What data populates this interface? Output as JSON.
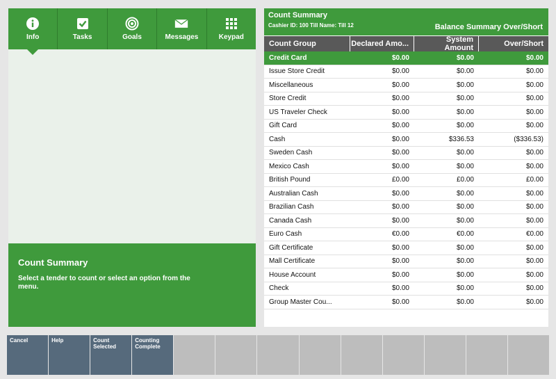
{
  "tabs": [
    {
      "label": "Info",
      "icon": "info-icon"
    },
    {
      "label": "Tasks",
      "icon": "checkbox-icon"
    },
    {
      "label": "Goals",
      "icon": "target-icon"
    },
    {
      "label": "Messages",
      "icon": "envelope-icon"
    },
    {
      "label": "Keypad",
      "icon": "keypad-icon"
    }
  ],
  "info": {
    "title": "Count Summary",
    "text": "Select a tender to count or select an option from the menu."
  },
  "summary": {
    "title": "Count Summary",
    "subtitle": "Cashier ID:  100  Till Name:  Till 12",
    "right_title": "Balance Summary Over/Short"
  },
  "table": {
    "headers": [
      "Count Group",
      "Declared Amo...",
      "System Amount",
      "Over/Short"
    ],
    "rows": [
      [
        "Credit Card",
        "$0.00",
        "$0.00",
        "$0.00"
      ],
      [
        "Issue Store Credit",
        "$0.00",
        "$0.00",
        "$0.00"
      ],
      [
        "Miscellaneous",
        "$0.00",
        "$0.00",
        "$0.00"
      ],
      [
        "Store Credit",
        "$0.00",
        "$0.00",
        "$0.00"
      ],
      [
        "US Traveler Check",
        "$0.00",
        "$0.00",
        "$0.00"
      ],
      [
        "Gift Card",
        "$0.00",
        "$0.00",
        "$0.00"
      ],
      [
        "Cash",
        "$0.00",
        "$336.53",
        "($336.53)"
      ],
      [
        "Sweden Cash",
        "$0.00",
        "$0.00",
        "$0.00"
      ],
      [
        "Mexico Cash",
        "$0.00",
        "$0.00",
        "$0.00"
      ],
      [
        "British Pound",
        "£0.00",
        "£0.00",
        "£0.00"
      ],
      [
        "Australian Cash",
        "$0.00",
        "$0.00",
        "$0.00"
      ],
      [
        "Brazilian Cash",
        "$0.00",
        "$0.00",
        "$0.00"
      ],
      [
        "Canada Cash",
        "$0.00",
        "$0.00",
        "$0.00"
      ],
      [
        "Euro Cash",
        "€0.00",
        "€0.00",
        "€0.00"
      ],
      [
        "Gift Certificate",
        "$0.00",
        "$0.00",
        "$0.00"
      ],
      [
        "Mall Certificate",
        "$0.00",
        "$0.00",
        "$0.00"
      ],
      [
        "House Account",
        "$0.00",
        "$0.00",
        "$0.00"
      ],
      [
        "Check",
        "$0.00",
        "$0.00",
        "$0.00"
      ],
      [
        "Group Master Cou...",
        "$0.00",
        "$0.00",
        "$0.00"
      ]
    ]
  },
  "buttons": [
    {
      "label": "Cancel"
    },
    {
      "label": "Help"
    },
    {
      "label": "Count Selected"
    },
    {
      "label": "Counting Complete"
    },
    {
      "label": ""
    },
    {
      "label": ""
    },
    {
      "label": ""
    },
    {
      "label": ""
    },
    {
      "label": ""
    },
    {
      "label": ""
    },
    {
      "label": ""
    },
    {
      "label": ""
    },
    {
      "label": ""
    }
  ],
  "colors": {
    "accent": "#3f9a3c",
    "button": "#566a7c",
    "button_disabled": "#bdbdbd",
    "header": "#595959"
  }
}
